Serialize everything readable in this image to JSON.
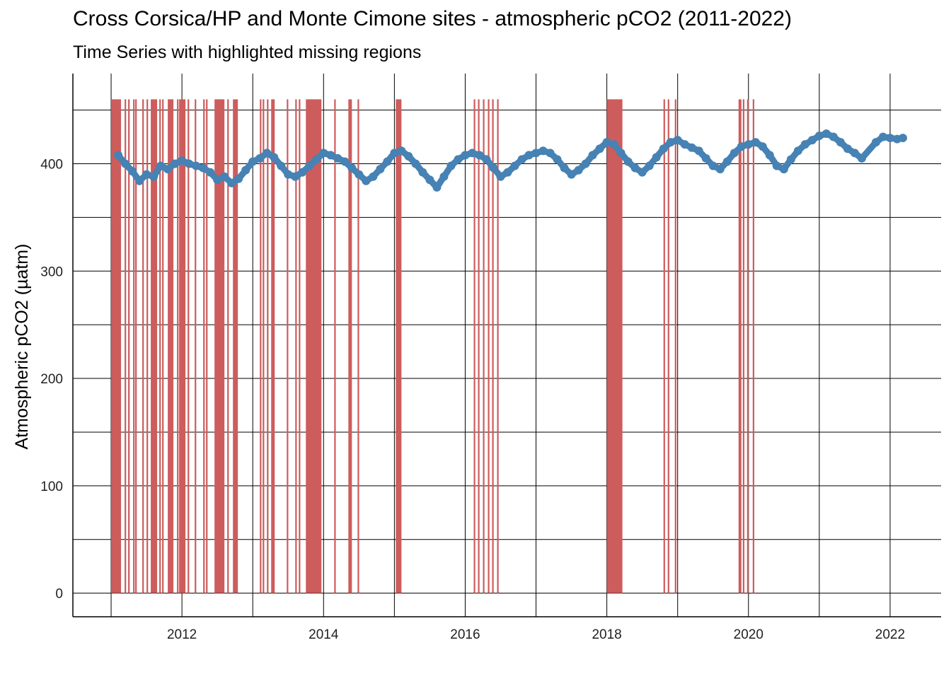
{
  "chart_data": {
    "type": "line",
    "title": "Cross Corsica/HP and Monte Cimone sites - atmospheric pCO2 (2011-2022)",
    "subtitle": "Time Series with highlighted missing regions",
    "xlabel": "",
    "ylabel": "Atmospheric pCO2 (µatm)",
    "xlim": [
      2010.46,
      2022.72
    ],
    "ylim": [
      -22,
      484
    ],
    "x_ticks": [
      2012,
      2014,
      2016,
      2018,
      2020,
      2022
    ],
    "x_tick_labels": [
      "2012",
      "2014",
      "2016",
      "2018",
      "2020",
      "2022"
    ],
    "y_ticks": [
      0,
      100,
      200,
      300,
      400
    ],
    "y_tick_labels": [
      "0",
      "100",
      "200",
      "300",
      "400"
    ],
    "grid": true,
    "colors": {
      "series": "#4682B4",
      "missing": "#CD5C5C"
    },
    "missing_value_level": 460,
    "series": [
      {
        "x": [
          2011.1,
          2011.2,
          2011.3,
          2011.4,
          2011.5,
          2011.6,
          2011.7,
          2011.8,
          2011.9,
          2012.0,
          2012.1,
          2012.2,
          2012.3,
          2012.4,
          2012.5,
          2012.6,
          2012.7,
          2012.8,
          2012.9,
          2013.0,
          2013.1,
          2013.2,
          2013.3,
          2013.4,
          2013.5,
          2013.6,
          2013.7,
          2013.8,
          2013.9,
          2014.0,
          2014.1,
          2014.2,
          2014.3,
          2014.4,
          2014.5,
          2014.6,
          2014.7,
          2014.8,
          2014.9,
          2015.0,
          2015.1,
          2015.2,
          2015.3,
          2015.4,
          2015.5,
          2015.6,
          2015.7,
          2015.8,
          2015.9,
          2016.0,
          2016.1,
          2016.2,
          2016.3,
          2016.4,
          2016.5,
          2016.6,
          2016.7,
          2016.8,
          2016.9,
          2017.0,
          2017.1,
          2017.2,
          2017.3,
          2017.4,
          2017.5,
          2017.6,
          2017.7,
          2017.8,
          2017.9,
          2018.0,
          2018.1,
          2018.2,
          2018.3,
          2018.4,
          2018.5,
          2018.6,
          2018.7,
          2018.8,
          2018.9,
          2019.0,
          2019.1,
          2019.2,
          2019.3,
          2019.4,
          2019.5,
          2019.6,
          2019.7,
          2019.8,
          2019.9,
          2020.0,
          2020.1,
          2020.2,
          2020.3,
          2020.4,
          2020.5,
          2020.6,
          2020.7,
          2020.8,
          2020.9,
          2021.0,
          2021.1,
          2021.2,
          2021.3,
          2021.4,
          2021.5,
          2021.6,
          2021.8,
          2021.9,
          2022.0,
          2022.1,
          2022.18
        ],
        "values": [
          408,
          400,
          393,
          384,
          390,
          388,
          398,
          395,
          400,
          403,
          400,
          398,
          396,
          392,
          385,
          388,
          382,
          386,
          394,
          402,
          405,
          410,
          406,
          398,
          390,
          388,
          392,
          398,
          404,
          410,
          408,
          405,
          402,
          396,
          390,
          384,
          388,
          395,
          402,
          410,
          412,
          407,
          400,
          392,
          385,
          378,
          388,
          398,
          404,
          408,
          410,
          408,
          404,
          396,
          388,
          392,
          398,
          404,
          408,
          410,
          412,
          410,
          404,
          396,
          390,
          394,
          400,
          408,
          414,
          420,
          418,
          410,
          402,
          396,
          392,
          398,
          406,
          414,
          420,
          422,
          418,
          415,
          412,
          405,
          398,
          395,
          402,
          410,
          416,
          418,
          420,
          416,
          408,
          398,
          395,
          404,
          412,
          418,
          422,
          426,
          428,
          425,
          420,
          414,
          410,
          405,
          420,
          425,
          424,
          423,
          424
        ]
      }
    ],
    "missing_regions": [
      [
        2011.0,
        2011.14
      ],
      [
        2011.19,
        2011.2
      ],
      [
        2011.24,
        2011.25
      ],
      [
        2011.31,
        2011.32
      ],
      [
        2011.34,
        2011.35
      ],
      [
        2011.44,
        2011.45
      ],
      [
        2011.5,
        2011.51
      ],
      [
        2011.56,
        2011.65
      ],
      [
        2011.68,
        2011.69
      ],
      [
        2011.72,
        2011.74
      ],
      [
        2011.8,
        2011.88
      ],
      [
        2011.93,
        2011.94
      ],
      [
        2011.96,
        2012.05
      ],
      [
        2012.08,
        2012.1
      ],
      [
        2012.18,
        2012.19
      ],
      [
        2012.3,
        2012.31
      ],
      [
        2012.34,
        2012.35
      ],
      [
        2012.46,
        2012.6
      ],
      [
        2012.64,
        2012.65
      ],
      [
        2012.72,
        2012.79
      ],
      [
        2013.1,
        2013.11
      ],
      [
        2013.14,
        2013.16
      ],
      [
        2013.2,
        2013.21
      ],
      [
        2013.26,
        2013.31
      ],
      [
        2013.48,
        2013.49
      ],
      [
        2013.6,
        2013.61
      ],
      [
        2013.65,
        2013.66
      ],
      [
        2013.75,
        2013.97
      ],
      [
        2014.15,
        2014.16
      ],
      [
        2014.35,
        2014.4
      ],
      [
        2014.48,
        2014.49
      ],
      [
        2015.02,
        2015.1
      ],
      [
        2016.12,
        2016.13
      ],
      [
        2016.18,
        2016.19
      ],
      [
        2016.25,
        2016.26
      ],
      [
        2016.32,
        2016.33
      ],
      [
        2016.38,
        2016.39
      ],
      [
        2016.45,
        2016.46
      ],
      [
        2018.0,
        2018.22
      ],
      [
        2018.8,
        2018.81
      ],
      [
        2018.86,
        2018.88
      ],
      [
        2018.96,
        2018.97
      ],
      [
        2019.86,
        2019.9
      ],
      [
        2019.92,
        2019.93
      ],
      [
        2019.98,
        2019.99
      ],
      [
        2020.06,
        2020.07
      ]
    ]
  }
}
